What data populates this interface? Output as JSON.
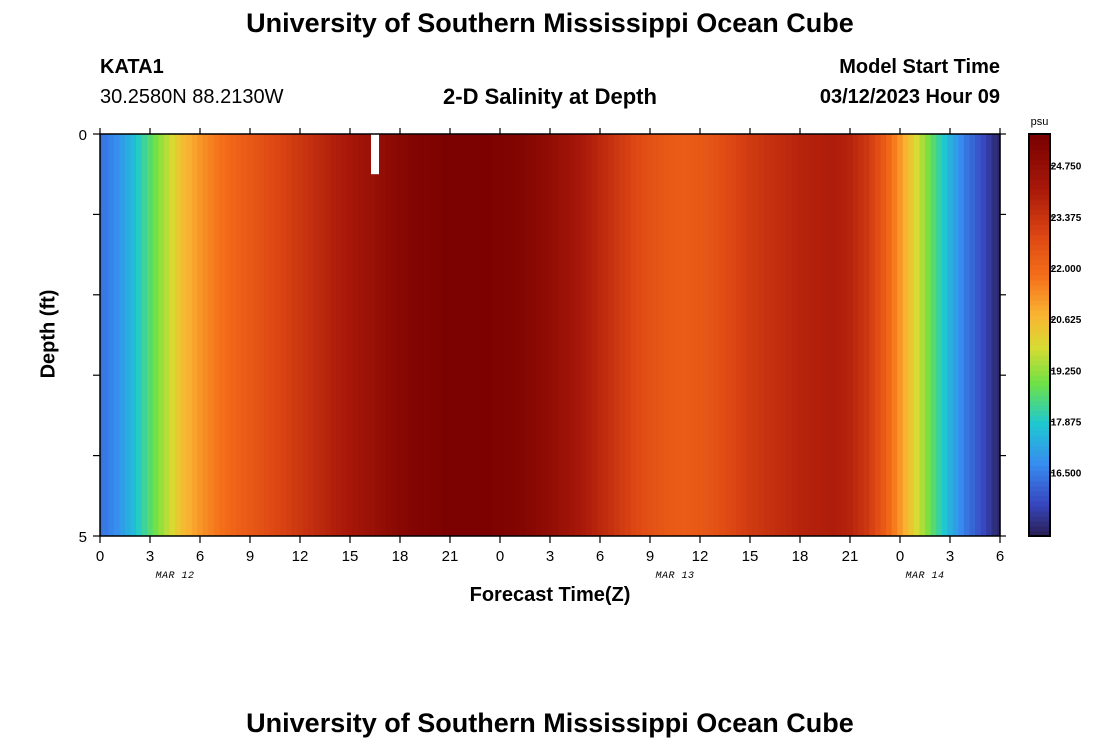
{
  "header": {
    "title": "University of Southern Mississippi Ocean Cube",
    "station": "KATA1",
    "coordinates": "30.2580N  88.2130W",
    "subtitle": "2-D Salinity at Depth",
    "model_start_label": "Model Start Time",
    "model_start_value": "03/12/2023 Hour 09"
  },
  "footer": {
    "title": "University of Southern Mississippi Ocean Cube"
  },
  "chart_data": {
    "type": "heatmap",
    "title": "2-D Salinity at Depth",
    "xlabel": "Forecast Time(Z)",
    "ylabel": "Depth (ft)",
    "y_ticks": [
      "0",
      "5"
    ],
    "ylim": [
      0,
      5
    ],
    "x_tick_labels": [
      "0",
      "3",
      "6",
      "9",
      "12",
      "15",
      "18",
      "21",
      "0",
      "3",
      "6",
      "9",
      "12",
      "15",
      "18",
      "21",
      "0",
      "3",
      "6"
    ],
    "date_labels": [
      {
        "text": "MAR 12",
        "tick_index": 1.5
      },
      {
        "text": "MAR 13",
        "tick_index": 11.5
      },
      {
        "text": "MAR 14",
        "tick_index": 16.5
      }
    ],
    "time_hours": [
      0,
      1,
      2,
      3,
      4,
      5,
      6,
      7,
      8,
      9,
      10,
      11,
      12,
      13,
      14,
      15,
      16,
      17,
      18,
      19,
      20,
      21,
      22,
      23,
      24,
      25,
      26,
      27,
      28,
      29,
      30,
      31,
      32,
      33,
      34,
      35,
      36,
      37,
      38,
      39,
      40,
      41,
      42,
      43,
      44,
      45,
      46,
      47,
      48,
      49,
      50,
      51,
      52,
      53,
      54
    ],
    "salinity_psu": [
      16.3,
      16.8,
      17.6,
      18.6,
      19.6,
      20.6,
      21.2,
      21.7,
      22.1,
      22.4,
      22.7,
      23.0,
      23.3,
      23.6,
      23.9,
      24.2,
      24.5,
      24.8,
      25.1,
      25.3,
      25.4,
      25.5,
      25.5,
      25.5,
      25.4,
      25.3,
      25.1,
      24.8,
      24.5,
      24.1,
      23.7,
      23.3,
      22.9,
      22.6,
      22.4,
      22.3,
      22.4,
      22.6,
      22.9,
      23.2,
      23.4,
      23.6,
      23.8,
      23.9,
      24.0,
      23.8,
      23.3,
      22.4,
      21.2,
      19.9,
      18.6,
      17.4,
      16.4,
      15.7,
      14.9
    ],
    "colorbar": {
      "unit": "psu",
      "min": 14.8,
      "max": 25.6,
      "tick_labels": [
        "24.750",
        "23.375",
        "22.000",
        "20.625",
        "19.250",
        "17.875",
        "16.500"
      ],
      "tick_values": [
        24.75,
        23.375,
        22.0,
        20.625,
        19.25,
        17.875,
        16.5
      ]
    },
    "missing_cells": [
      {
        "hour": 16.5,
        "depth_from": 0,
        "depth_to": 0.5
      }
    ]
  }
}
